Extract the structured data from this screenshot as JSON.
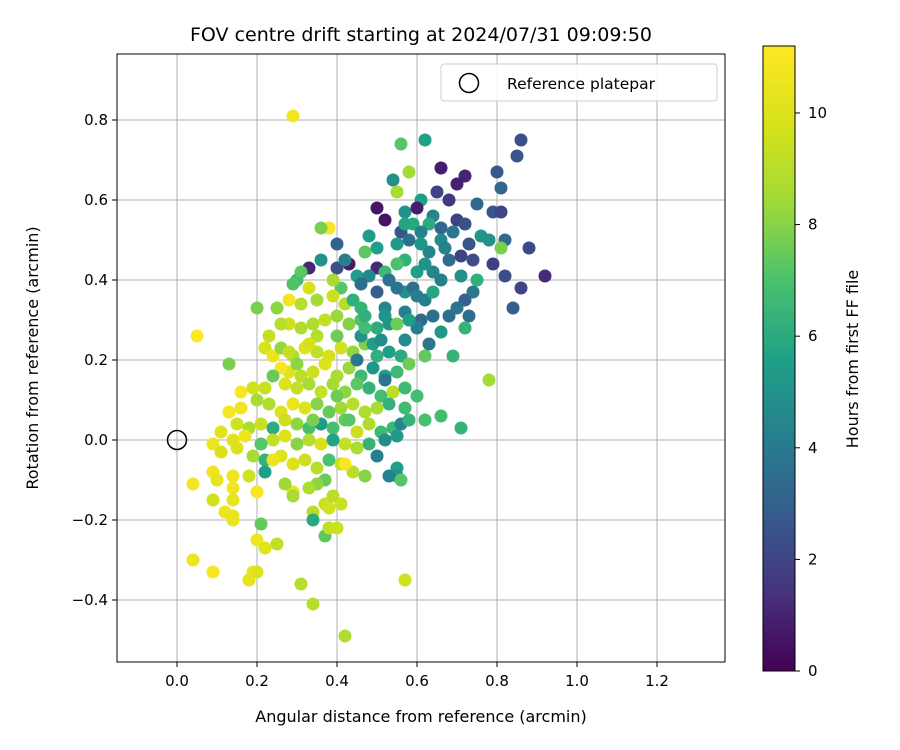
{
  "chart_data": {
    "type": "scatter",
    "title": "FOV centre drift starting at 2024/07/31 09:09:50",
    "xlabel": "Angular distance from reference (arcmin)",
    "ylabel": "Rotation from reference (arcmin)",
    "xlim": [
      -0.15,
      1.37
    ],
    "ylim": [
      -0.555,
      0.965
    ],
    "xticks": [
      0.0,
      0.2,
      0.4,
      0.6,
      0.8,
      1.0,
      1.2
    ],
    "xtick_labels": [
      "0.0",
      "0.2",
      "0.4",
      "0.6",
      "0.8",
      "1.0",
      "1.2"
    ],
    "yticks": [
      -0.4,
      -0.2,
      0.0,
      0.2,
      0.4,
      0.6,
      0.8
    ],
    "ytick_labels": [
      "−0.4",
      "−0.2",
      "0.0",
      "0.2",
      "0.4",
      "0.6",
      "0.8"
    ],
    "grid": true,
    "legend": {
      "placement": "top-right",
      "entries": [
        "Reference platepar"
      ]
    },
    "reference_point": {
      "x": 0.0,
      "y": 0.0
    },
    "colorbar": {
      "label": "Hours from first FF file",
      "colormap": "viridis",
      "range": [
        0,
        11.2
      ],
      "ticks": [
        0,
        2,
        4,
        6,
        8,
        10
      ],
      "tick_labels": [
        "0",
        "2",
        "4",
        "6",
        "8",
        "10"
      ]
    },
    "points": [
      [
        0.29,
        0.81,
        10.8
      ],
      [
        0.05,
        0.26,
        11.2
      ],
      [
        0.62,
        0.75,
        5.6
      ],
      [
        0.86,
        0.75,
        2.4
      ],
      [
        0.56,
        0.74,
        7.2
      ],
      [
        0.85,
        0.71,
        2.6
      ],
      [
        0.66,
        0.68,
        0.8
      ],
      [
        0.72,
        0.66,
        1.0
      ],
      [
        0.7,
        0.64,
        0.9
      ],
      [
        0.58,
        0.67,
        8.5
      ],
      [
        0.8,
        0.67,
        2.7
      ],
      [
        0.54,
        0.65,
        4.8
      ],
      [
        0.65,
        0.62,
        2.0
      ],
      [
        0.81,
        0.63,
        3.2
      ],
      [
        0.55,
        0.62,
        8.6
      ],
      [
        0.68,
        0.6,
        1.6
      ],
      [
        0.75,
        0.59,
        3.3
      ],
      [
        0.5,
        0.58,
        0.6
      ],
      [
        0.61,
        0.6,
        5.5
      ],
      [
        0.57,
        0.57,
        5.0
      ],
      [
        0.79,
        0.57,
        2.6
      ],
      [
        0.81,
        0.57,
        2.0
      ],
      [
        0.64,
        0.56,
        4.4
      ],
      [
        0.7,
        0.55,
        1.9
      ],
      [
        0.72,
        0.54,
        2.5
      ],
      [
        0.52,
        0.55,
        0.5
      ],
      [
        0.59,
        0.54,
        5.9
      ],
      [
        0.63,
        0.54,
        6.0
      ],
      [
        0.56,
        0.52,
        2.6
      ],
      [
        0.66,
        0.53,
        3.2
      ],
      [
        0.48,
        0.51,
        5.4
      ],
      [
        0.38,
        0.53,
        11.0
      ],
      [
        0.36,
        0.53,
        7.8
      ],
      [
        0.4,
        0.49,
        3.0
      ],
      [
        0.61,
        0.52,
        4.3
      ],
      [
        0.69,
        0.52,
        3.8
      ],
      [
        0.76,
        0.51,
        5.2
      ],
      [
        0.78,
        0.5,
        5.0
      ],
      [
        0.82,
        0.5,
        3.4
      ],
      [
        0.58,
        0.5,
        3.6
      ],
      [
        0.66,
        0.5,
        4.7
      ],
      [
        0.55,
        0.49,
        5.3
      ],
      [
        0.5,
        0.48,
        5.5
      ],
      [
        0.73,
        0.49,
        2.6
      ],
      [
        0.81,
        0.48,
        7.8
      ],
      [
        0.88,
        0.48,
        2.2
      ],
      [
        0.92,
        0.41,
        1.2
      ],
      [
        0.86,
        0.38,
        2.0
      ],
      [
        0.79,
        0.44,
        1.8
      ],
      [
        0.74,
        0.45,
        2.3
      ],
      [
        0.71,
        0.46,
        2.0
      ],
      [
        0.63,
        0.47,
        4.4
      ],
      [
        0.67,
        0.48,
        4.3
      ],
      [
        0.57,
        0.45,
        6.2
      ],
      [
        0.55,
        0.44,
        7.0
      ],
      [
        0.5,
        0.43,
        1.1
      ],
      [
        0.47,
        0.47,
        7.3
      ],
      [
        0.43,
        0.44,
        0.7
      ],
      [
        0.4,
        0.43,
        2.4
      ],
      [
        0.33,
        0.43,
        1.1
      ],
      [
        0.3,
        0.4,
        6.7
      ],
      [
        0.31,
        0.42,
        7.3
      ],
      [
        0.36,
        0.45,
        5.0
      ],
      [
        0.42,
        0.45,
        4.1
      ],
      [
        0.45,
        0.41,
        5.5
      ],
      [
        0.48,
        0.41,
        4.5
      ],
      [
        0.52,
        0.42,
        6.6
      ],
      [
        0.6,
        0.42,
        5.5
      ],
      [
        0.64,
        0.42,
        4.4
      ],
      [
        0.71,
        0.41,
        4.9
      ],
      [
        0.75,
        0.4,
        6.2
      ],
      [
        0.82,
        0.41,
        2.3
      ],
      [
        0.84,
        0.33,
        2.9
      ],
      [
        0.74,
        0.37,
        4.0
      ],
      [
        0.72,
        0.35,
        3.0
      ],
      [
        0.7,
        0.33,
        3.8
      ],
      [
        0.62,
        0.35,
        4.1
      ],
      [
        0.57,
        0.37,
        4.8
      ],
      [
        0.55,
        0.38,
        3.8
      ],
      [
        0.5,
        0.37,
        2.9
      ],
      [
        0.46,
        0.39,
        3.6
      ],
      [
        0.41,
        0.38,
        7.2
      ],
      [
        0.39,
        0.36,
        9.5
      ],
      [
        0.35,
        0.35,
        8.5
      ],
      [
        0.31,
        0.34,
        9.0
      ],
      [
        0.28,
        0.35,
        10.8
      ],
      [
        0.29,
        0.39,
        7.1
      ],
      [
        0.25,
        0.33,
        8.1
      ],
      [
        0.2,
        0.33,
        7.8
      ],
      [
        0.33,
        0.38,
        9.8
      ],
      [
        0.42,
        0.34,
        9.0
      ],
      [
        0.46,
        0.33,
        6.4
      ],
      [
        0.52,
        0.33,
        4.5
      ],
      [
        0.57,
        0.32,
        4.1
      ],
      [
        0.61,
        0.3,
        3.3
      ],
      [
        0.64,
        0.31,
        3.6
      ],
      [
        0.68,
        0.31,
        3.6
      ],
      [
        0.72,
        0.28,
        6.4
      ],
      [
        0.73,
        0.31,
        3.5
      ],
      [
        0.66,
        0.27,
        5.2
      ],
      [
        0.63,
        0.24,
        3.7
      ],
      [
        0.6,
        0.28,
        4.2
      ],
      [
        0.57,
        0.25,
        4.7
      ],
      [
        0.53,
        0.29,
        5.2
      ],
      [
        0.5,
        0.28,
        6.1
      ],
      [
        0.46,
        0.3,
        7.1
      ],
      [
        0.43,
        0.29,
        7.9
      ],
      [
        0.4,
        0.31,
        8.3
      ],
      [
        0.37,
        0.3,
        9.3
      ],
      [
        0.34,
        0.29,
        8.8
      ],
      [
        0.31,
        0.28,
        8.8
      ],
      [
        0.28,
        0.29,
        9.6
      ],
      [
        0.26,
        0.29,
        9.0
      ],
      [
        0.23,
        0.26,
        9.3
      ],
      [
        0.22,
        0.23,
        9.8
      ],
      [
        0.24,
        0.21,
        10.5
      ],
      [
        0.26,
        0.23,
        8.2
      ],
      [
        0.29,
        0.21,
        8.8
      ],
      [
        0.32,
        0.23,
        10.2
      ],
      [
        0.35,
        0.22,
        9.2
      ],
      [
        0.38,
        0.21,
        9.8
      ],
      [
        0.41,
        0.23,
        9.6
      ],
      [
        0.44,
        0.22,
        8.2
      ],
      [
        0.47,
        0.24,
        7.9
      ],
      [
        0.5,
        0.21,
        6.2
      ],
      [
        0.53,
        0.22,
        5.5
      ],
      [
        0.56,
        0.21,
        6.0
      ],
      [
        0.58,
        0.19,
        7.6
      ],
      [
        0.55,
        0.17,
        6.6
      ],
      [
        0.52,
        0.16,
        5.6
      ],
      [
        0.49,
        0.18,
        5.2
      ],
      [
        0.46,
        0.16,
        6.6
      ],
      [
        0.43,
        0.18,
        8.3
      ],
      [
        0.4,
        0.16,
        8.7
      ],
      [
        0.37,
        0.19,
        10.0
      ],
      [
        0.34,
        0.17,
        9.5
      ],
      [
        0.31,
        0.16,
        9.1
      ],
      [
        0.28,
        0.17,
        10.1
      ],
      [
        0.26,
        0.18,
        11.0
      ],
      [
        0.24,
        0.16,
        7.5
      ],
      [
        0.22,
        0.13,
        9.4
      ],
      [
        0.19,
        0.13,
        9.6
      ],
      [
        0.16,
        0.12,
        11.0
      ],
      [
        0.13,
        0.19,
        7.8
      ],
      [
        0.27,
        0.14,
        10.0
      ],
      [
        0.3,
        0.13,
        9.3
      ],
      [
        0.33,
        0.14,
        8.6
      ],
      [
        0.36,
        0.12,
        9.3
      ],
      [
        0.39,
        0.14,
        8.5
      ],
      [
        0.42,
        0.12,
        8.1
      ],
      [
        0.45,
        0.14,
        7.3
      ],
      [
        0.48,
        0.13,
        6.3
      ],
      [
        0.51,
        0.11,
        6.8
      ],
      [
        0.54,
        0.12,
        9.1
      ],
      [
        0.57,
        0.13,
        6.6
      ],
      [
        0.78,
        0.15,
        8.5
      ],
      [
        0.62,
        0.21,
        7.4
      ],
      [
        0.69,
        0.21,
        6.4
      ],
      [
        0.6,
        0.11,
        6.8
      ],
      [
        0.57,
        0.08,
        6.7
      ],
      [
        0.53,
        0.09,
        6.3
      ],
      [
        0.5,
        0.08,
        8.6
      ],
      [
        0.47,
        0.07,
        8.8
      ],
      [
        0.44,
        0.09,
        9.0
      ],
      [
        0.41,
        0.08,
        8.4
      ],
      [
        0.38,
        0.07,
        7.5
      ],
      [
        0.35,
        0.09,
        8.0
      ],
      [
        0.32,
        0.08,
        10.0
      ],
      [
        0.29,
        0.09,
        10.5
      ],
      [
        0.26,
        0.07,
        10.1
      ],
      [
        0.23,
        0.09,
        8.8
      ],
      [
        0.2,
        0.1,
        8.6
      ],
      [
        0.16,
        0.08,
        10.7
      ],
      [
        0.13,
        0.07,
        10.9
      ],
      [
        0.15,
        0.04,
        9.6
      ],
      [
        0.18,
        0.03,
        8.7
      ],
      [
        0.21,
        0.04,
        9.4
      ],
      [
        0.24,
        0.03,
        6.1
      ],
      [
        0.27,
        0.05,
        9.5
      ],
      [
        0.3,
        0.04,
        8.1
      ],
      [
        0.33,
        0.03,
        6.9
      ],
      [
        0.36,
        0.04,
        5.3
      ],
      [
        0.39,
        0.03,
        6.9
      ],
      [
        0.42,
        0.05,
        7.5
      ],
      [
        0.45,
        0.02,
        9.5
      ],
      [
        0.48,
        0.04,
        8.8
      ],
      [
        0.51,
        0.02,
        6.7
      ],
      [
        0.54,
        0.03,
        6.5
      ],
      [
        0.56,
        0.04,
        4.5
      ],
      [
        0.58,
        0.05,
        6.3
      ],
      [
        0.62,
        0.05,
        6.9
      ],
      [
        0.66,
        0.06,
        6.8
      ],
      [
        0.71,
        0.03,
        6.4
      ],
      [
        0.55,
        0.01,
        5.3
      ],
      [
        0.52,
        0.0,
        4.8
      ],
      [
        0.48,
        -0.01,
        6.4
      ],
      [
        0.45,
        -0.02,
        8.7
      ],
      [
        0.42,
        -0.01,
        9.3
      ],
      [
        0.39,
        0.0,
        5.7
      ],
      [
        0.36,
        -0.01,
        9.8
      ],
      [
        0.33,
        0.0,
        8.9
      ],
      [
        0.3,
        -0.01,
        8.0
      ],
      [
        0.27,
        0.01,
        10.0
      ],
      [
        0.24,
        0.0,
        9.2
      ],
      [
        0.21,
        -0.01,
        7.2
      ],
      [
        0.17,
        0.01,
        10.6
      ],
      [
        0.14,
        0.0,
        10.2
      ],
      [
        0.11,
        0.02,
        10.2
      ],
      [
        0.09,
        -0.01,
        10.6
      ],
      [
        0.11,
        -0.03,
        9.9
      ],
      [
        0.15,
        -0.02,
        10.0
      ],
      [
        0.19,
        -0.04,
        8.6
      ],
      [
        0.22,
        -0.05,
        6.3
      ],
      [
        0.26,
        -0.04,
        10.1
      ],
      [
        0.29,
        -0.06,
        9.9
      ],
      [
        0.32,
        -0.05,
        9.5
      ],
      [
        0.35,
        -0.07,
        9.0
      ],
      [
        0.38,
        -0.05,
        7.0
      ],
      [
        0.41,
        -0.06,
        9.3
      ],
      [
        0.44,
        -0.08,
        9.1
      ],
      [
        0.47,
        -0.09,
        8.0
      ],
      [
        0.5,
        -0.04,
        4.2
      ],
      [
        0.55,
        -0.07,
        5.6
      ],
      [
        0.55,
        -0.09,
        4.9
      ],
      [
        0.56,
        -0.1,
        7.2
      ],
      [
        0.53,
        -0.09,
        4.3
      ],
      [
        0.42,
        -0.06,
        11.0
      ],
      [
        0.37,
        -0.1,
        7.5
      ],
      [
        0.35,
        -0.11,
        8.1
      ],
      [
        0.33,
        -0.12,
        8.7
      ],
      [
        0.29,
        -0.13,
        10.4
      ],
      [
        0.27,
        -0.11,
        8.4
      ],
      [
        0.24,
        -0.05,
        10.5
      ],
      [
        0.22,
        -0.08,
        5.6
      ],
      [
        0.2,
        -0.13,
        11.0
      ],
      [
        0.18,
        -0.09,
        9.6
      ],
      [
        0.14,
        -0.09,
        10.6
      ],
      [
        0.14,
        -0.12,
        10.7
      ],
      [
        0.14,
        -0.15,
        10.4
      ],
      [
        0.14,
        -0.19,
        10.5
      ],
      [
        0.12,
        -0.18,
        10.6
      ],
      [
        0.14,
        -0.2,
        10.4
      ],
      [
        0.09,
        -0.08,
        10.7
      ],
      [
        0.1,
        -0.1,
        10.3
      ],
      [
        0.09,
        -0.15,
        9.6
      ],
      [
        0.04,
        -0.11,
        10.8
      ],
      [
        0.21,
        -0.21,
        7.4
      ],
      [
        0.2,
        -0.25,
        10.7
      ],
      [
        0.22,
        -0.27,
        10.1
      ],
      [
        0.25,
        -0.26,
        9.2
      ],
      [
        0.29,
        -0.14,
        8.6
      ],
      [
        0.34,
        -0.18,
        9.1
      ],
      [
        0.34,
        -0.2,
        6.0
      ],
      [
        0.37,
        -0.24,
        7.3
      ],
      [
        0.38,
        -0.22,
        9.2
      ],
      [
        0.4,
        -0.22,
        9.5
      ],
      [
        0.37,
        -0.16,
        9.4
      ],
      [
        0.39,
        -0.14,
        9.1
      ],
      [
        0.38,
        -0.17,
        9.6
      ],
      [
        0.41,
        -0.16,
        9.4
      ],
      [
        0.19,
        -0.33,
        10.5
      ],
      [
        0.2,
        -0.33,
        10.0
      ],
      [
        0.18,
        -0.35,
        10.8
      ],
      [
        0.18,
        -0.35,
        10.3
      ],
      [
        0.09,
        -0.33,
        11.0
      ],
      [
        0.04,
        -0.3,
        10.6
      ],
      [
        0.31,
        -0.36,
        9.0
      ],
      [
        0.34,
        -0.41,
        9.0
      ],
      [
        0.42,
        -0.49,
        8.8
      ],
      [
        0.57,
        -0.35,
        9.6
      ],
      [
        0.52,
        0.15,
        3.8
      ],
      [
        0.46,
        0.26,
        5.0
      ],
      [
        0.44,
        0.35,
        6.2
      ],
      [
        0.39,
        0.4,
        8.6
      ],
      [
        0.53,
        0.4,
        3.7
      ],
      [
        0.59,
        0.38,
        3.5
      ],
      [
        0.62,
        0.44,
        5.0
      ],
      [
        0.58,
        0.3,
        5.5
      ],
      [
        0.49,
        0.24,
        5.4
      ],
      [
        0.45,
        0.2,
        3.9
      ],
      [
        0.51,
        0.25,
        4.7
      ],
      [
        0.47,
        0.28,
        6.8
      ],
      [
        0.4,
        0.26,
        7.6
      ],
      [
        0.35,
        0.26,
        8.9
      ],
      [
        0.33,
        0.24,
        9.7
      ],
      [
        0.3,
        0.19,
        8.1
      ],
      [
        0.28,
        0.22,
        9.3
      ],
      [
        0.43,
        0.05,
        7.2
      ],
      [
        0.34,
        0.05,
        7.8
      ],
      [
        0.4,
        0.11,
        7.6
      ],
      [
        0.47,
        0.31,
        6.2
      ],
      [
        0.52,
        0.31,
        5.1
      ],
      [
        0.55,
        0.29,
        7.6
      ],
      [
        0.6,
        0.36,
        4.1
      ],
      [
        0.64,
        0.37,
        5.8
      ],
      [
        0.66,
        0.4,
        4.2
      ],
      [
        0.68,
        0.45,
        3.4
      ],
      [
        0.61,
        0.49,
        5.2
      ],
      [
        0.57,
        0.54,
        5.8
      ],
      [
        0.6,
        0.58,
        0.8
      ]
    ]
  }
}
